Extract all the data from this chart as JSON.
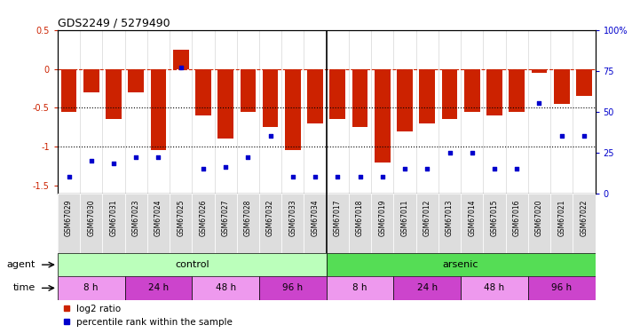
{
  "title": "GDS2249 / 5279490",
  "samples": [
    "GSM67029",
    "GSM67030",
    "GSM67031",
    "GSM67023",
    "GSM67024",
    "GSM67025",
    "GSM67026",
    "GSM67027",
    "GSM67028",
    "GSM67032",
    "GSM67033",
    "GSM67034",
    "GSM67017",
    "GSM67018",
    "GSM67019",
    "GSM67011",
    "GSM67012",
    "GSM67013",
    "GSM67014",
    "GSM67015",
    "GSM67016",
    "GSM67020",
    "GSM67021",
    "GSM67022"
  ],
  "log2_ratio": [
    -0.55,
    -0.3,
    -0.65,
    -0.3,
    -1.05,
    0.25,
    -0.6,
    -0.9,
    -0.55,
    -0.75,
    -1.05,
    -0.7,
    -0.65,
    -0.75,
    -1.2,
    -0.8,
    -0.7,
    -0.65,
    -0.55,
    -0.6,
    -0.55,
    -0.05,
    -0.45,
    -0.35
  ],
  "percentile": [
    10,
    20,
    18,
    22,
    22,
    77,
    15,
    16,
    22,
    35,
    10,
    10,
    10,
    10,
    10,
    15,
    15,
    25,
    25,
    15,
    15,
    55,
    35,
    35
  ],
  "bar_color": "#cc2200",
  "dot_color": "#0000cc",
  "ylim_left": [
    -1.6,
    0.5
  ],
  "ylim_right": [
    0,
    100
  ],
  "yticks_left": [
    -1.5,
    -1.0,
    -0.5,
    0.0,
    0.5
  ],
  "ytick_labels_left": [
    "-1.5",
    "-1",
    "-0.5",
    "0",
    "0.5"
  ],
  "yticks_right": [
    0,
    25,
    50,
    75,
    100
  ],
  "ytick_labels_right": [
    "0",
    "25",
    "50",
    "75",
    "100%"
  ],
  "hlines": [
    0.0,
    -0.5,
    -1.0
  ],
  "hline_styles": [
    "dashed",
    "dotted",
    "dotted"
  ],
  "hline_colors": [
    "#cc2200",
    "black",
    "black"
  ],
  "agent_control_label": "control",
  "agent_arsenic_label": "arsenic",
  "agent_control_color": "#bbffbb",
  "agent_arsenic_color": "#55dd55",
  "time_labels": [
    "8 h",
    "24 h",
    "48 h",
    "96 h",
    "8 h",
    "24 h",
    "48 h",
    "96 h"
  ],
  "time_color_light": "#ee99ee",
  "time_color_dark": "#cc44cc",
  "agent_label": "agent",
  "time_label": "time",
  "legend_red_label": "log2 ratio",
  "legend_blue_label": "percentile rank within the sample",
  "control_n": 12,
  "arsenic_n": 12,
  "background_color": "#ffffff",
  "plot_bg_color": "#ffffff",
  "tick_label_color_left": "#cc2200",
  "tick_label_color_right": "#0000cc",
  "sample_cell_color": "#dddddd",
  "time_group_sizes": [
    3,
    3,
    3,
    3,
    3,
    3,
    3,
    3
  ]
}
